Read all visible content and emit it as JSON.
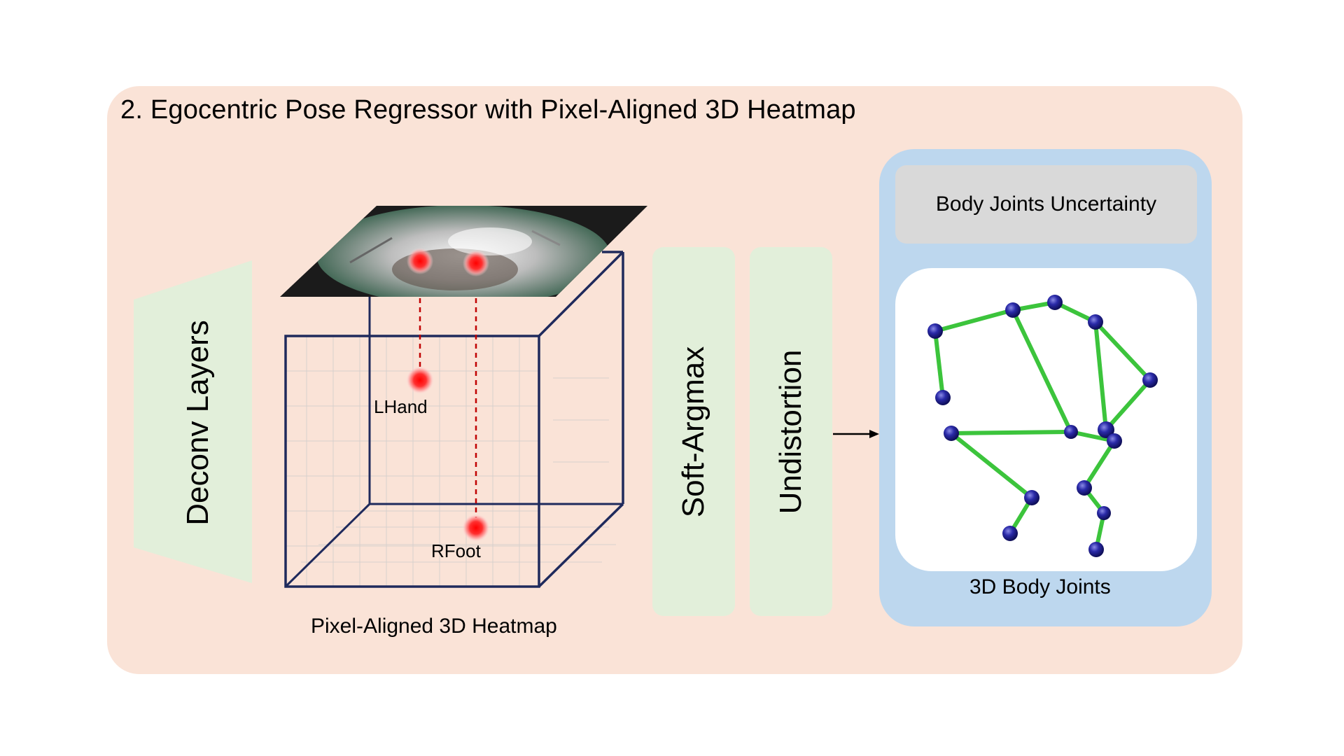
{
  "title": "2. Egocentric Pose Regressor with Pixel-Aligned 3D Heatmap",
  "modules": {
    "deconv": "Deconv Layers",
    "softargmax": "Soft-Argmax",
    "undistortion": "Undistortion"
  },
  "heatmap": {
    "caption": "Pixel-Aligned 3D Heatmap",
    "joint_labels": [
      "LHand",
      "RFoot"
    ]
  },
  "output": {
    "uncertainty": "Body Joints Uncertainty",
    "joints_caption": "3D Body Joints"
  },
  "colors": {
    "panel_bg": "#fae3d7",
    "module_bg": "#e2efda",
    "output_bg": "#bdd7ee",
    "cube_edge": "#1f2a5c",
    "heat_red": "#ff1f1f",
    "bone_green": "#3cc43c",
    "joint_blue": "#1e1e8c"
  },
  "icons": [
    "fisheye-image",
    "heatmap-cube",
    "skeleton-figure",
    "right-arrow-icon"
  ]
}
